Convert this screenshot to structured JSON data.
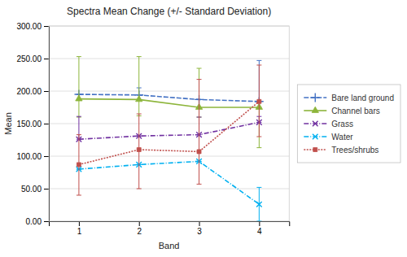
{
  "chart_data": {
    "type": "line",
    "title": "Spectra Mean Change (+/- Standard Deviation)",
    "xlabel": "Band",
    "ylabel": "Mean",
    "x": [
      1,
      2,
      3,
      4
    ],
    "xlim": [
      0.5,
      4.5
    ],
    "xticks": [
      1,
      2,
      3,
      4
    ],
    "ylim": [
      0,
      300
    ],
    "yticks": [
      {
        "value": 0,
        "label": "0.00"
      },
      {
        "value": 50,
        "label": "50.00"
      },
      {
        "value": 100,
        "label": "100.00"
      },
      {
        "value": 150,
        "label": "150.00"
      },
      {
        "value": 200,
        "label": "200.00"
      },
      {
        "value": 250,
        "label": "250.00"
      },
      {
        "value": 300,
        "label": "300.00"
      }
    ],
    "grid": true,
    "legend": "right",
    "series": [
      {
        "name": "Bare land ground",
        "color": "#4472c4",
        "marker": "plus",
        "line_style": "dashed",
        "values": [
          195,
          194,
          187,
          184
        ],
        "upper": [
          195,
          205,
          187,
          247
        ],
        "lower": [
          195,
          194,
          187,
          184
        ]
      },
      {
        "name": "Channel bars",
        "color": "#8db53b",
        "marker": "triangle",
        "line_style": "solid",
        "values": [
          188,
          187,
          175,
          175
        ],
        "upper": [
          253,
          253,
          235,
          175
        ],
        "lower": [
          160,
          162,
          160,
          113
        ]
      },
      {
        "name": "Grass",
        "color": "#7030a0",
        "marker": "x",
        "line_style": "dashdot",
        "values": [
          126,
          131,
          133,
          152
        ],
        "upper": [
          161,
          131,
          160,
          161
        ],
        "lower": [
          126,
          131,
          133,
          152
        ]
      },
      {
        "name": "Water",
        "color": "#00b0f0",
        "marker": "x",
        "line_style": "dashdot",
        "values": [
          80,
          87,
          92,
          26
        ],
        "upper": [
          80,
          87,
          92,
          52
        ],
        "lower": [
          80,
          87,
          92,
          0
        ]
      },
      {
        "name": "Trees/shrubs",
        "color": "#c0504d",
        "marker": "square",
        "line_style": "dotted",
        "values": [
          87,
          110,
          107,
          184
        ],
        "upper": [
          133,
          165,
          218,
          240
        ],
        "lower": [
          40,
          50,
          57,
          130
        ]
      }
    ]
  }
}
